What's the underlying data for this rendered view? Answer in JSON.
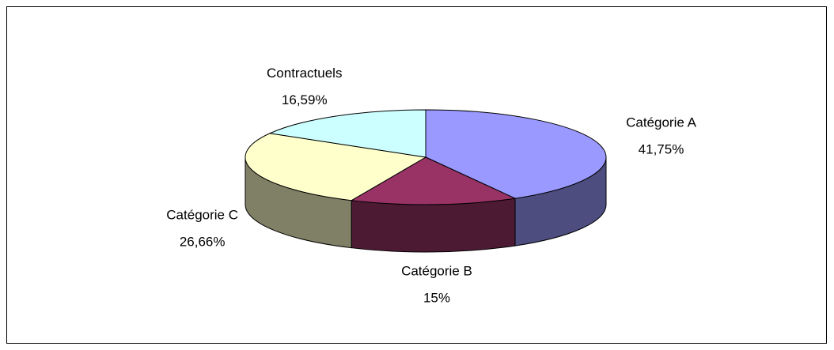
{
  "chart_data": {
    "type": "pie",
    "categories": [
      "Catégorie A",
      "Catégorie B",
      "Catégorie C",
      "Contractuels"
    ],
    "values": [
      41.75,
      15,
      26.66,
      16.59
    ],
    "value_labels": [
      "41,75%",
      "15%",
      "26,66%",
      "16,59%"
    ],
    "colors": [
      "#9999ff",
      "#993366",
      "#ffffcc",
      "#ccffff"
    ],
    "three_d": true
  }
}
